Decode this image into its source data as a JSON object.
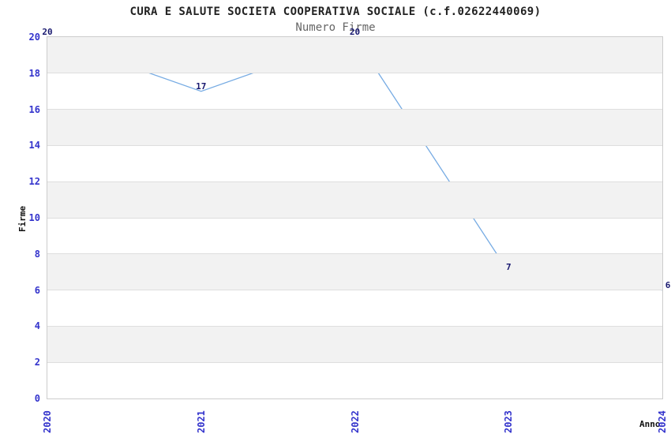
{
  "figure": {
    "title": "CURA E SALUTE SOCIETA COOPERATIVA SOCIALE (c.f.02622440069)",
    "subtitle": "Numero Firme"
  },
  "colors": {
    "background": "#ffffff",
    "band_gray": "#f2f2f2",
    "gridline": "#dedede",
    "plot_border": "#cccccc",
    "line": "#76abe3",
    "tick_label": "#3333cc",
    "data_label": "#191970",
    "title_text": "#222222",
    "subtitle_text": "#666666",
    "axis_title_text": "#111111"
  },
  "chart_data": {
    "type": "line",
    "title": "CURA E SALUTE SOCIETA COOPERATIVA SOCIALE (c.f.02622440069)",
    "subtitle": "Numero Firme",
    "xlabel": "Anno",
    "ylabel": "Firme",
    "x": [
      "2020",
      "2021",
      "2022",
      "2023",
      "2024"
    ],
    "series": [
      {
        "name": "Numero Firme",
        "values": [
          20,
          17,
          20,
          7,
          6
        ]
      }
    ],
    "data_labels": [
      "20",
      "17",
      "20",
      "7",
      "6"
    ],
    "ylim": [
      0,
      20
    ],
    "yticks": [
      0,
      2,
      4,
      6,
      8,
      10,
      12,
      14,
      16,
      18,
      20
    ],
    "grid": "horizontal",
    "background_bands": "alternating-gray",
    "legend": "none"
  }
}
